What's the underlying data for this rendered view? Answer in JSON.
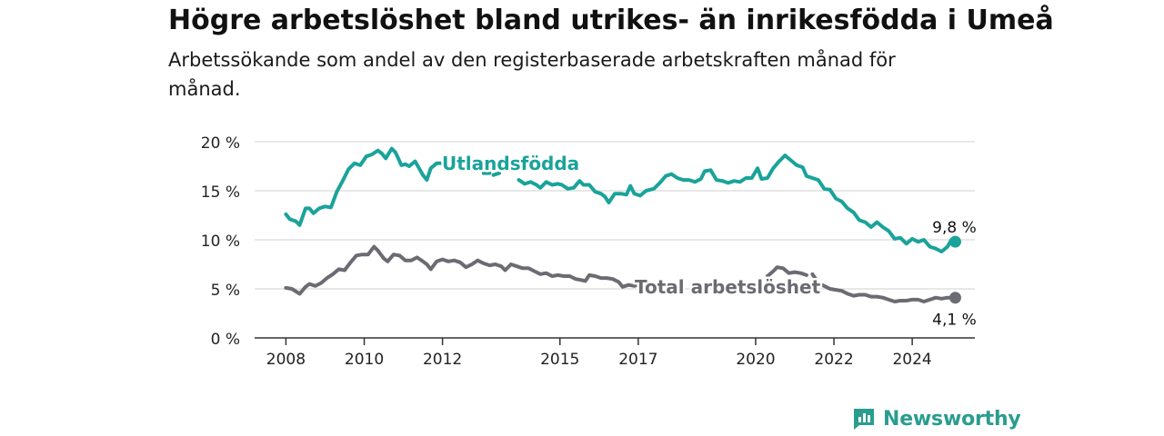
{
  "title": "Högre arbetslöshet bland utrikes- än inrikesfödda i Umeå",
  "subtitle": "Arbetssökande som andel av den registerbaserade arbetskraften månad för månad.",
  "brand": {
    "name": "Newsworthy",
    "icon": "newsworthy-logo-icon"
  },
  "colors": {
    "foreign": "#1aa39a",
    "total": "#6b6b73",
    "grid": "#d9d9d9",
    "axis": "#333333"
  },
  "chart_data": {
    "type": "line",
    "x_tick_labels": [
      "2008",
      "2010",
      "2012",
      "2015",
      "2017",
      "2020",
      "2022",
      "2024"
    ],
    "y_tick_labels": [
      "0 %",
      "5 %",
      "10 %",
      "15 %",
      "20 %"
    ],
    "y_ticks": [
      0,
      5,
      10,
      15,
      20
    ],
    "x_ticks": [
      2008,
      2010,
      2012,
      2015,
      2017,
      2020,
      2022,
      2024
    ],
    "xlim": [
      2007.2,
      2025.6
    ],
    "ylim": [
      0,
      20
    ],
    "grid": true,
    "series": [
      {
        "name": "Utlandsfödda",
        "key": "foreign",
        "end_label": "9,8 %",
        "points": [
          [
            2008.0,
            12.6
          ],
          [
            2008.1,
            12.1
          ],
          [
            2008.25,
            11.9
          ],
          [
            2008.35,
            11.5
          ],
          [
            2008.5,
            13.2
          ],
          [
            2008.6,
            13.2
          ],
          [
            2008.7,
            12.7
          ],
          [
            2008.85,
            13.2
          ],
          [
            2009.0,
            13.4
          ],
          [
            2009.15,
            13.3
          ],
          [
            2009.3,
            14.9
          ],
          [
            2009.45,
            16.0
          ],
          [
            2009.6,
            17.2
          ],
          [
            2009.75,
            17.8
          ],
          [
            2009.9,
            17.6
          ],
          [
            2010.05,
            18.5
          ],
          [
            2010.2,
            18.7
          ],
          [
            2010.35,
            19.1
          ],
          [
            2010.45,
            18.8
          ],
          [
            2010.55,
            18.3
          ],
          [
            2010.7,
            19.3
          ],
          [
            2010.8,
            18.9
          ],
          [
            2010.95,
            17.6
          ],
          [
            2011.05,
            17.7
          ],
          [
            2011.15,
            17.5
          ],
          [
            2011.3,
            18.0
          ],
          [
            2011.4,
            17.3
          ],
          [
            2011.5,
            16.6
          ],
          [
            2011.6,
            16.1
          ],
          [
            2011.7,
            17.3
          ],
          [
            2011.85,
            17.8
          ],
          [
            2012.0,
            17.8
          ],
          [
            2012.1,
            18.1
          ],
          null,
          [
            2013.05,
            16.8
          ],
          [
            2013.2,
            16.8
          ],
          null,
          [
            2013.3,
            16.6
          ],
          [
            2013.45,
            16.8
          ],
          null,
          [
            2013.95,
            16.1
          ],
          [
            2014.1,
            15.7
          ],
          [
            2014.25,
            15.9
          ],
          [
            2014.4,
            15.6
          ],
          [
            2014.5,
            15.3
          ],
          [
            2014.65,
            15.9
          ],
          [
            2014.8,
            15.6
          ],
          [
            2014.95,
            15.7
          ],
          [
            2015.05,
            15.6
          ],
          [
            2015.2,
            15.2
          ],
          [
            2015.35,
            15.3
          ],
          [
            2015.5,
            16.0
          ],
          [
            2015.6,
            15.6
          ],
          [
            2015.75,
            15.6
          ],
          [
            2015.9,
            14.9
          ],
          [
            2016.05,
            14.7
          ],
          [
            2016.15,
            14.4
          ],
          [
            2016.25,
            13.8
          ],
          [
            2016.4,
            14.7
          ],
          [
            2016.55,
            14.7
          ],
          [
            2016.7,
            14.6
          ],
          [
            2016.8,
            15.5
          ],
          [
            2016.9,
            14.7
          ],
          [
            2017.05,
            14.5
          ],
          [
            2017.2,
            15.0
          ],
          [
            2017.4,
            15.2
          ],
          [
            2017.55,
            15.8
          ],
          [
            2017.7,
            16.5
          ],
          [
            2017.85,
            16.7
          ],
          [
            2018.0,
            16.3
          ],
          [
            2018.15,
            16.1
          ],
          [
            2018.3,
            16.1
          ],
          [
            2018.45,
            15.9
          ],
          [
            2018.6,
            16.2
          ],
          [
            2018.7,
            17.0
          ],
          [
            2018.85,
            17.1
          ],
          [
            2019.0,
            16.1
          ],
          [
            2019.15,
            16.0
          ],
          [
            2019.3,
            15.8
          ],
          [
            2019.45,
            16.0
          ],
          [
            2019.6,
            15.9
          ],
          [
            2019.75,
            16.3
          ],
          [
            2019.9,
            16.3
          ],
          [
            2020.05,
            17.3
          ],
          [
            2020.15,
            16.2
          ],
          [
            2020.3,
            16.3
          ],
          [
            2020.45,
            17.3
          ],
          [
            2020.6,
            18.0
          ],
          [
            2020.75,
            18.6
          ],
          [
            2020.9,
            18.1
          ],
          [
            2021.05,
            17.6
          ],
          [
            2021.2,
            17.4
          ],
          [
            2021.3,
            16.5
          ],
          [
            2021.45,
            16.3
          ],
          [
            2021.6,
            16.1
          ],
          [
            2021.75,
            15.2
          ],
          [
            2021.9,
            15.1
          ],
          [
            2022.05,
            14.2
          ],
          [
            2022.2,
            13.9
          ],
          [
            2022.35,
            13.2
          ],
          [
            2022.5,
            12.8
          ],
          [
            2022.65,
            12.0
          ],
          [
            2022.8,
            11.8
          ],
          [
            2022.95,
            11.3
          ],
          [
            2023.1,
            11.8
          ],
          [
            2023.25,
            11.3
          ],
          [
            2023.4,
            10.9
          ],
          [
            2023.55,
            10.1
          ],
          [
            2023.7,
            10.2
          ],
          [
            2023.85,
            9.6
          ],
          [
            2024.0,
            10.1
          ],
          [
            2024.15,
            9.8
          ],
          [
            2024.3,
            10.0
          ],
          [
            2024.45,
            9.3
          ],
          [
            2024.6,
            9.1
          ],
          [
            2024.75,
            8.8
          ],
          [
            2024.9,
            9.3
          ],
          [
            2025.0,
            10.0
          ],
          [
            2025.1,
            9.8
          ]
        ]
      },
      {
        "name": "Total arbetslöshet",
        "key": "total",
        "end_label": "4,1 %",
        "points": [
          [
            2008.0,
            5.1
          ],
          [
            2008.15,
            5.0
          ],
          [
            2008.35,
            4.5
          ],
          [
            2008.5,
            5.2
          ],
          [
            2008.6,
            5.5
          ],
          [
            2008.75,
            5.3
          ],
          [
            2008.9,
            5.6
          ],
          [
            2009.05,
            6.1
          ],
          [
            2009.2,
            6.5
          ],
          [
            2009.35,
            7.0
          ],
          [
            2009.5,
            6.9
          ],
          [
            2009.65,
            7.7
          ],
          [
            2009.8,
            8.4
          ],
          [
            2009.95,
            8.5
          ],
          [
            2010.1,
            8.5
          ],
          [
            2010.25,
            9.3
          ],
          [
            2010.35,
            8.9
          ],
          [
            2010.5,
            8.1
          ],
          [
            2010.6,
            7.8
          ],
          [
            2010.75,
            8.5
          ],
          [
            2010.9,
            8.4
          ],
          [
            2011.05,
            7.9
          ],
          [
            2011.2,
            7.9
          ],
          [
            2011.35,
            8.2
          ],
          [
            2011.5,
            7.8
          ],
          [
            2011.6,
            7.5
          ],
          [
            2011.7,
            7.0
          ],
          [
            2011.85,
            7.8
          ],
          [
            2012.0,
            8.0
          ],
          [
            2012.15,
            7.8
          ],
          [
            2012.3,
            7.9
          ],
          [
            2012.45,
            7.7
          ],
          [
            2012.6,
            7.2
          ],
          [
            2012.75,
            7.5
          ],
          [
            2012.9,
            7.9
          ],
          [
            2013.05,
            7.6
          ],
          [
            2013.2,
            7.4
          ],
          [
            2013.35,
            7.5
          ],
          [
            2013.5,
            7.3
          ],
          [
            2013.6,
            6.9
          ],
          [
            2013.75,
            7.5
          ],
          [
            2013.9,
            7.3
          ],
          [
            2014.05,
            7.1
          ],
          [
            2014.2,
            7.1
          ],
          [
            2014.35,
            6.8
          ],
          [
            2014.5,
            6.5
          ],
          [
            2014.65,
            6.6
          ],
          [
            2014.8,
            6.3
          ],
          [
            2014.95,
            6.4
          ],
          [
            2015.1,
            6.3
          ],
          [
            2015.25,
            6.3
          ],
          [
            2015.4,
            6.0
          ],
          [
            2015.55,
            5.9
          ],
          [
            2015.65,
            5.8
          ],
          [
            2015.75,
            6.4
          ],
          [
            2015.9,
            6.3
          ],
          [
            2016.05,
            6.1
          ],
          [
            2016.2,
            6.1
          ],
          [
            2016.35,
            6.0
          ],
          [
            2016.5,
            5.7
          ],
          [
            2016.6,
            5.2
          ],
          [
            2016.75,
            5.4
          ],
          [
            2016.9,
            5.3
          ],
          [
            2017.05,
            5.5
          ],
          null,
          [
            2020.3,
            6.3
          ],
          [
            2020.45,
            6.8
          ],
          [
            2020.55,
            7.2
          ],
          [
            2020.7,
            7.1
          ],
          [
            2020.85,
            6.6
          ],
          [
            2021.0,
            6.7
          ],
          [
            2021.15,
            6.6
          ],
          [
            2021.3,
            6.4
          ],
          null,
          [
            2021.45,
            6.5
          ],
          [
            2021.6,
            5.6
          ],
          [
            2021.75,
            5.3
          ],
          [
            2021.9,
            5.0
          ],
          [
            2022.05,
            4.9
          ],
          [
            2022.2,
            4.8
          ],
          [
            2022.35,
            4.5
          ],
          [
            2022.5,
            4.3
          ],
          [
            2022.65,
            4.4
          ],
          [
            2022.8,
            4.4
          ],
          [
            2022.95,
            4.2
          ],
          [
            2023.1,
            4.2
          ],
          [
            2023.25,
            4.1
          ],
          [
            2023.4,
            3.9
          ],
          [
            2023.55,
            3.7
          ],
          [
            2023.7,
            3.8
          ],
          [
            2023.85,
            3.8
          ],
          [
            2024.0,
            3.9
          ],
          [
            2024.15,
            3.9
          ],
          [
            2024.3,
            3.7
          ],
          [
            2024.45,
            3.9
          ],
          [
            2024.6,
            4.1
          ],
          [
            2024.75,
            4.0
          ],
          [
            2024.9,
            4.1
          ],
          [
            2025.05,
            4.1
          ],
          [
            2025.1,
            4.1
          ]
        ]
      }
    ]
  }
}
